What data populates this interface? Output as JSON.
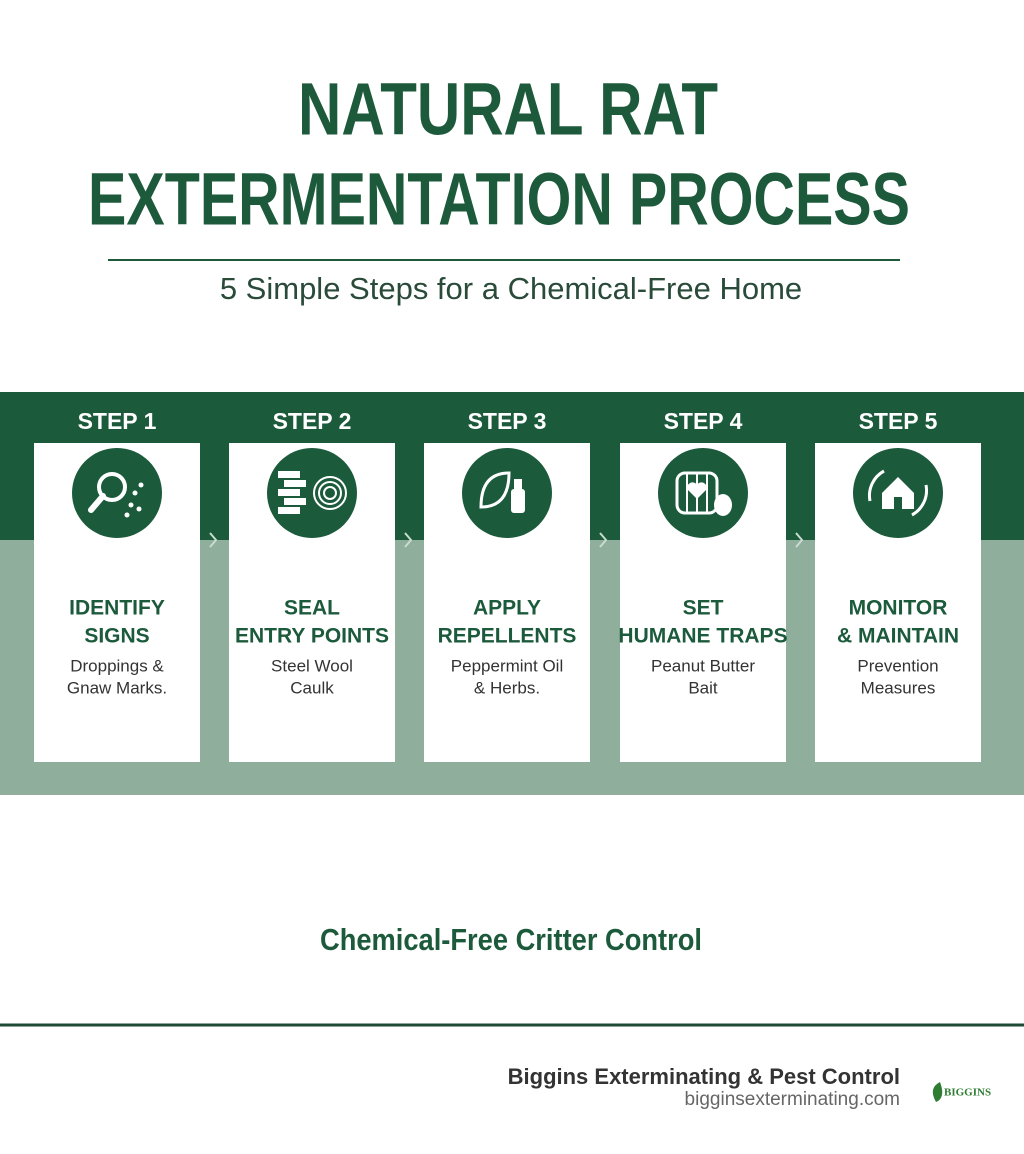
{
  "header": {
    "title": [
      "NATURAL RAT",
      "EXTERMENTATION PROCESS"
    ],
    "subtitle": "5 Simple Steps for a Chemical-Free Home"
  },
  "steps": [
    {
      "label": "STEP 1",
      "title": [
        "IDENTIFY",
        "SIGNS"
      ],
      "description": [
        "Droppings &",
        "Gnaw Marks."
      ]
    },
    {
      "label": "STEP 2",
      "title": [
        "SEAL",
        "ENTRY POINTS"
      ],
      "description": [
        "Steel Wool",
        "Caulk"
      ]
    },
    {
      "label": "STEP 3",
      "title": [
        "APPLY",
        "REPELLENTS"
      ],
      "description": [
        "Peppermint Oil",
        "& Herbs."
      ]
    },
    {
      "label": "STEP 4",
      "title": [
        "SET",
        "HUMANE TRAPS"
      ],
      "description": [
        "Peanut Butter",
        "Bait"
      ]
    },
    {
      "label": "STEP 5",
      "title": [
        "MONITOR",
        "& MAINTAIN"
      ],
      "description": [
        "Prevention",
        "Measures"
      ]
    }
  ],
  "tagline": "Chemical-Free Critter Control",
  "footer": {
    "company": "Biggins Exterminating & Pest Control",
    "url": "bigginsexterminating.com",
    "logo": "BIGGINS"
  }
}
